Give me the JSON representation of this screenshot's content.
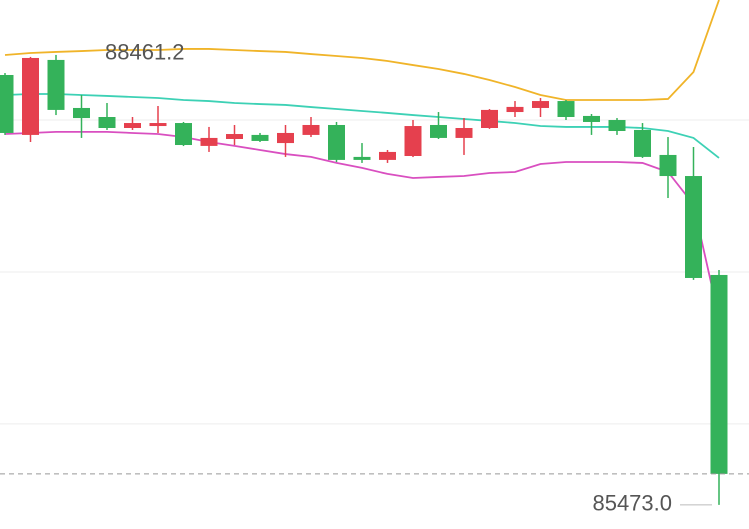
{
  "chart_data": {
    "type": "candlestick",
    "ylim": [
      85313,
      88826
    ],
    "gridlines": [
      88029,
      87020,
      86011
    ],
    "up_color": "#e5404e",
    "down_color": "#34b25a",
    "open": [
      88328,
      87930,
      88428,
      88109,
      88049,
      87976,
      87989,
      88009,
      87857,
      87903,
      87930,
      87876,
      87930,
      87996,
      87784,
      87764,
      87790,
      87996,
      87910,
      87976,
      88082,
      88109,
      88155,
      88056,
      88029,
      87963,
      87797,
      87657,
      87000
    ],
    "close": [
      87943,
      88441,
      88096,
      88042,
      87976,
      88009,
      88009,
      87863,
      87910,
      87936,
      87890,
      87943,
      87996,
      87764,
      87764,
      87817,
      87989,
      87910,
      87976,
      88096,
      88116,
      88155,
      88049,
      88016,
      87956,
      87784,
      87657,
      86980,
      85679
    ],
    "high": [
      88341,
      88448,
      88461.2,
      88195,
      88142,
      88049,
      88122,
      88016,
      87983,
      87996,
      87943,
      87996,
      88049,
      88016,
      87876,
      87830,
      88029,
      88082,
      88042,
      88102,
      88155,
      88175,
      88162,
      88069,
      88042,
      88009,
      87916,
      87850,
      87033
    ],
    "low": [
      87930,
      87883,
      88062,
      87910,
      87963,
      87963,
      87943,
      87856,
      87817,
      87863,
      87883,
      87784,
      87916,
      87750,
      87744,
      87744,
      87783,
      87903,
      87797,
      87970,
      88049,
      88049,
      88029,
      87930,
      87930,
      87777,
      87511,
      86967,
      85473.0
    ],
    "bands": [
      {
        "color": "#f0b429",
        "values": [
          88461,
          88474,
          88481,
          88487,
          88494,
          88494,
          88494,
          88501,
          88501,
          88494,
          88487,
          88481,
          88467,
          88454,
          88441,
          88421,
          88394,
          88368,
          88335,
          88295,
          88248,
          88195,
          88162,
          88162,
          88162,
          88162,
          88169,
          88348,
          88826
        ]
      },
      {
        "color": "#3dd1b5",
        "values": [
          88195,
          88202,
          88202,
          88195,
          88189,
          88182,
          88175,
          88162,
          88155,
          88142,
          88135,
          88129,
          88115,
          88102,
          88089,
          88076,
          88062,
          88049,
          88036,
          88023,
          88009,
          87989,
          87983,
          87983,
          87983,
          87976,
          87956,
          87910,
          87777
        ]
      },
      {
        "color": "#d94fc0",
        "values": [
          87936,
          87943,
          87950,
          87950,
          87950,
          87943,
          87936,
          87916,
          87883,
          87857,
          87830,
          87803,
          87784,
          87744,
          87711,
          87671,
          87644,
          87651,
          87657,
          87677,
          87684,
          87737,
          87750,
          87750,
          87750,
          87744,
          87684,
          87468,
          86714
        ]
      }
    ],
    "high_label": "88461.2",
    "low_label": "85473.0"
  }
}
